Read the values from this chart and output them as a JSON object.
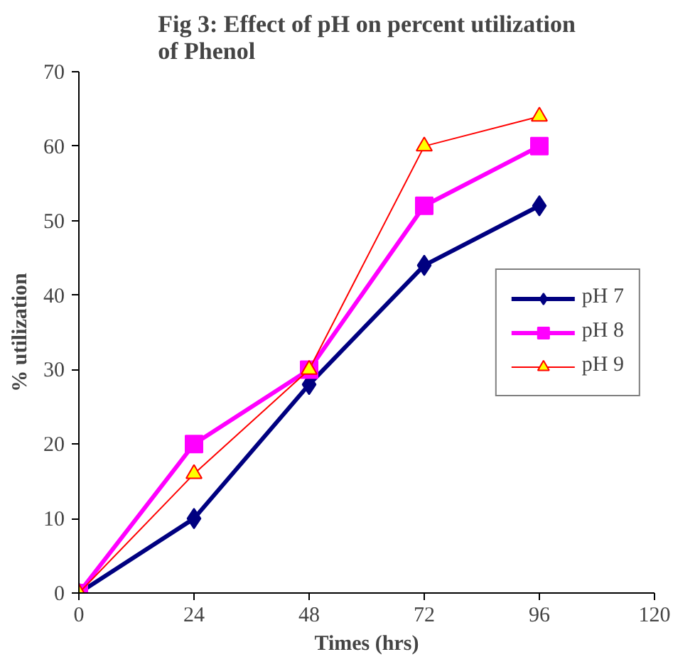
{
  "chart_data": {
    "type": "line",
    "title": "Fig 3: Effect of pH on percent utilization of Phenol",
    "xlabel": "Times (hrs)",
    "ylabel": "% utilization",
    "x": [
      0,
      24,
      48,
      72,
      96
    ],
    "xlim": [
      0,
      120
    ],
    "xticks": [
      0,
      24,
      48,
      72,
      96,
      120
    ],
    "ylim": [
      0,
      70
    ],
    "yticks": [
      0,
      10,
      20,
      30,
      40,
      50,
      60,
      70
    ],
    "series": [
      {
        "name": "pH 7",
        "color": "#000080",
        "marker": "diamond",
        "values": [
          0,
          10,
          28,
          44,
          52
        ]
      },
      {
        "name": "pH 8",
        "color": "#ff00ff",
        "marker": "square",
        "values": [
          0,
          20,
          30,
          52,
          60
        ]
      },
      {
        "name": "pH 9",
        "color": "#ff0000",
        "marker": "triangle",
        "values": [
          0,
          16,
          30,
          60,
          64
        ]
      }
    ],
    "legend": "right",
    "grid": false
  }
}
